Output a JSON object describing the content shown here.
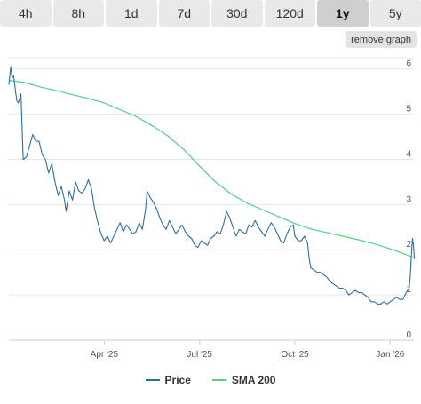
{
  "tabs": [
    {
      "label": "4h",
      "active": false
    },
    {
      "label": "8h",
      "active": false
    },
    {
      "label": "1d",
      "active": false
    },
    {
      "label": "7d",
      "active": false
    },
    {
      "label": "30d",
      "active": false
    },
    {
      "label": "120d",
      "active": false
    },
    {
      "label": "1y",
      "active": true
    },
    {
      "label": "5y",
      "active": false
    }
  ],
  "remove_graph_label": "remove graph",
  "colors": {
    "price": "#2f6c9f",
    "sma": "#4fd18b",
    "grid": "#e6e6e6",
    "axis_text": "#555555"
  },
  "chart_data": {
    "type": "line",
    "title": "",
    "xlabel": "",
    "ylabel": "",
    "x_ticks": [
      {
        "label": "Apr '25",
        "month": 3
      },
      {
        "label": "Jul '25",
        "month": 6
      },
      {
        "label": "Oct '25",
        "month": 9
      },
      {
        "label": "Jan '26",
        "month": 12
      }
    ],
    "xlim_month": [
      0,
      12.8
    ],
    "ylim": [
      0,
      6.25
    ],
    "y_ticks": [
      0,
      1,
      2,
      3,
      4,
      5,
      6
    ],
    "y_axis_side": "right",
    "grid": true,
    "legend_position": "bottom",
    "series": [
      {
        "name": "Price",
        "color": "#2f6c9f",
        "points": [
          [
            0.0,
            5.65
          ],
          [
            0.06,
            6.05
          ],
          [
            0.1,
            5.8
          ],
          [
            0.15,
            5.85
          ],
          [
            0.2,
            5.55
          ],
          [
            0.25,
            5.3
          ],
          [
            0.3,
            5.25
          ],
          [
            0.38,
            5.45
          ],
          [
            0.45,
            4.0
          ],
          [
            0.55,
            4.05
          ],
          [
            0.65,
            4.3
          ],
          [
            0.75,
            4.55
          ],
          [
            0.85,
            4.4
          ],
          [
            0.95,
            4.4
          ],
          [
            1.05,
            4.1
          ],
          [
            1.15,
            4.0
          ],
          [
            1.25,
            3.7
          ],
          [
            1.35,
            3.9
          ],
          [
            1.45,
            3.5
          ],
          [
            1.55,
            3.2
          ],
          [
            1.65,
            3.4
          ],
          [
            1.75,
            3.1
          ],
          [
            1.8,
            2.85
          ],
          [
            1.9,
            3.3
          ],
          [
            2.0,
            3.1
          ],
          [
            2.1,
            3.5
          ],
          [
            2.2,
            3.3
          ],
          [
            2.3,
            3.25
          ],
          [
            2.4,
            3.35
          ],
          [
            2.5,
            3.55
          ],
          [
            2.6,
            3.35
          ],
          [
            2.7,
            2.9
          ],
          [
            2.8,
            2.6
          ],
          [
            2.9,
            2.35
          ],
          [
            3.0,
            2.2
          ],
          [
            3.1,
            2.3
          ],
          [
            3.2,
            2.15
          ],
          [
            3.3,
            2.3
          ],
          [
            3.4,
            2.45
          ],
          [
            3.5,
            2.6
          ],
          [
            3.6,
            2.4
          ],
          [
            3.7,
            2.55
          ],
          [
            3.8,
            2.45
          ],
          [
            3.9,
            2.35
          ],
          [
            4.0,
            2.4
          ],
          [
            4.1,
            2.6
          ],
          [
            4.2,
            2.45
          ],
          [
            4.3,
            2.9
          ],
          [
            4.35,
            3.3
          ],
          [
            4.45,
            3.15
          ],
          [
            4.55,
            3.05
          ],
          [
            4.65,
            2.9
          ],
          [
            4.75,
            2.7
          ],
          [
            4.85,
            2.55
          ],
          [
            4.95,
            2.45
          ],
          [
            5.05,
            2.65
          ],
          [
            5.15,
            2.5
          ],
          [
            5.25,
            2.35
          ],
          [
            5.35,
            2.45
          ],
          [
            5.45,
            2.55
          ],
          [
            5.55,
            2.4
          ],
          [
            5.65,
            2.3
          ],
          [
            5.75,
            2.25
          ],
          [
            5.85,
            2.1
          ],
          [
            5.95,
            2.05
          ],
          [
            6.05,
            2.2
          ],
          [
            6.15,
            2.15
          ],
          [
            6.25,
            2.1
          ],
          [
            6.35,
            2.25
          ],
          [
            6.45,
            2.3
          ],
          [
            6.55,
            2.4
          ],
          [
            6.65,
            2.35
          ],
          [
            6.75,
            2.55
          ],
          [
            6.85,
            2.85
          ],
          [
            6.95,
            2.7
          ],
          [
            7.05,
            2.5
          ],
          [
            7.15,
            2.3
          ],
          [
            7.25,
            2.45
          ],
          [
            7.35,
            2.4
          ],
          [
            7.45,
            2.35
          ],
          [
            7.55,
            2.55
          ],
          [
            7.65,
            2.5
          ],
          [
            7.75,
            2.65
          ],
          [
            7.85,
            2.5
          ],
          [
            7.95,
            2.4
          ],
          [
            8.05,
            2.3
          ],
          [
            8.15,
            2.45
          ],
          [
            8.25,
            2.6
          ],
          [
            8.35,
            2.5
          ],
          [
            8.45,
            2.35
          ],
          [
            8.55,
            2.2
          ],
          [
            8.65,
            2.15
          ],
          [
            8.75,
            2.35
          ],
          [
            8.85,
            2.5
          ],
          [
            8.95,
            2.55
          ],
          [
            9.0,
            2.3
          ],
          [
            9.1,
            2.2
          ],
          [
            9.2,
            2.2
          ],
          [
            9.3,
            2.3
          ],
          [
            9.4,
            2.15
          ],
          [
            9.45,
            1.8
          ],
          [
            9.5,
            1.6
          ],
          [
            9.6,
            1.55
          ],
          [
            9.7,
            1.5
          ],
          [
            9.8,
            1.5
          ],
          [
            9.9,
            1.45
          ],
          [
            10.0,
            1.4
          ],
          [
            10.1,
            1.3
          ],
          [
            10.2,
            1.25
          ],
          [
            10.3,
            1.2
          ],
          [
            10.4,
            1.15
          ],
          [
            10.5,
            1.15
          ],
          [
            10.6,
            1.1
          ],
          [
            10.7,
            1.0
          ],
          [
            10.8,
            1.05
          ],
          [
            10.9,
            1.1
          ],
          [
            11.0,
            1.05
          ],
          [
            11.1,
            1.05
          ],
          [
            11.2,
            1.0
          ],
          [
            11.3,
            0.95
          ],
          [
            11.4,
            0.85
          ],
          [
            11.5,
            0.85
          ],
          [
            11.6,
            0.8
          ],
          [
            11.7,
            0.8
          ],
          [
            11.8,
            0.85
          ],
          [
            11.9,
            0.8
          ],
          [
            12.0,
            0.85
          ],
          [
            12.1,
            0.9
          ],
          [
            12.2,
            0.95
          ],
          [
            12.3,
            0.9
          ],
          [
            12.4,
            0.9
          ],
          [
            12.5,
            1.05
          ],
          [
            12.55,
            1.1
          ],
          [
            12.6,
            1.15
          ],
          [
            12.63,
            1.4
          ],
          [
            12.66,
            1.8
          ],
          [
            12.7,
            2.25
          ],
          [
            12.73,
            2.1
          ],
          [
            12.76,
            1.8
          ]
        ]
      },
      {
        "name": "SMA 200",
        "color": "#4fd18b",
        "points": [
          [
            0.0,
            5.75
          ],
          [
            0.5,
            5.7
          ],
          [
            1.0,
            5.6
          ],
          [
            1.5,
            5.52
          ],
          [
            2.0,
            5.43
          ],
          [
            2.5,
            5.35
          ],
          [
            3.0,
            5.25
          ],
          [
            3.5,
            5.1
          ],
          [
            4.0,
            4.95
          ],
          [
            4.5,
            4.75
          ],
          [
            5.0,
            4.52
          ],
          [
            5.5,
            4.22
          ],
          [
            6.0,
            3.85
          ],
          [
            6.5,
            3.5
          ],
          [
            7.0,
            3.23
          ],
          [
            7.5,
            3.03
          ],
          [
            8.0,
            2.88
          ],
          [
            8.5,
            2.73
          ],
          [
            9.0,
            2.58
          ],
          [
            9.5,
            2.46
          ],
          [
            10.0,
            2.38
          ],
          [
            10.5,
            2.3
          ],
          [
            11.0,
            2.22
          ],
          [
            11.5,
            2.13
          ],
          [
            12.0,
            2.02
          ],
          [
            12.5,
            1.89
          ],
          [
            12.76,
            1.82
          ]
        ]
      }
    ]
  }
}
